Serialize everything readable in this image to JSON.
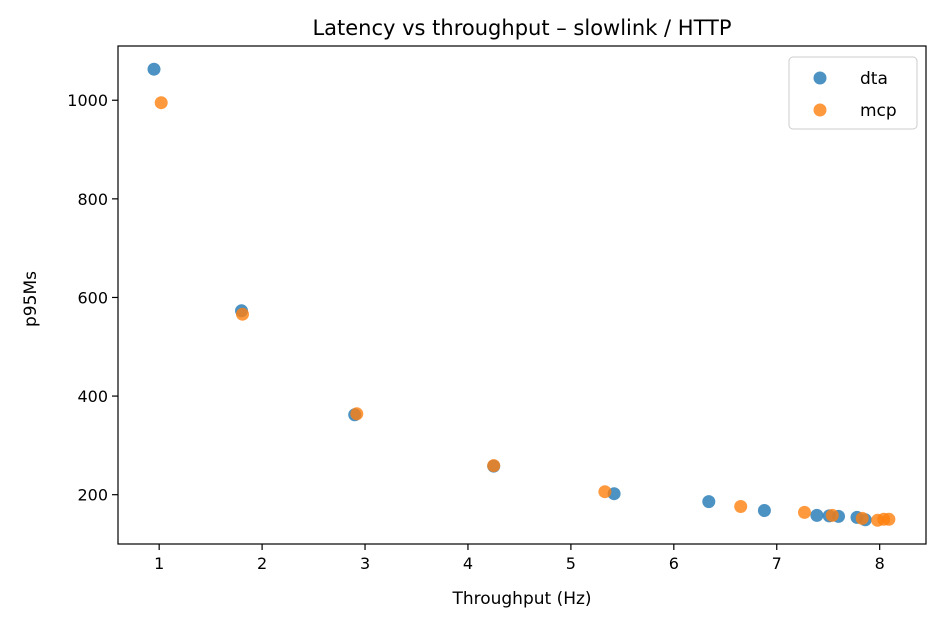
{
  "chart_data": {
    "type": "scatter",
    "title": "Latency vs throughput – slowlink / HTTP",
    "xlabel": "Throughput (Hz)",
    "ylabel": "p95Ms",
    "xlim": [
      0.6,
      8.45
    ],
    "ylim": [
      100,
      1110
    ],
    "xticks": [
      1,
      2,
      3,
      4,
      5,
      6,
      7,
      8
    ],
    "yticks": [
      200,
      400,
      600,
      800,
      1000
    ],
    "grid": false,
    "legend": "top-right",
    "series": [
      {
        "name": "dta",
        "color": "#1f77b4",
        "points": [
          [
            0.95,
            1063
          ],
          [
            1.8,
            573
          ],
          [
            2.9,
            362
          ],
          [
            4.25,
            258
          ],
          [
            5.42,
            202
          ],
          [
            6.34,
            186
          ],
          [
            6.88,
            168
          ],
          [
            7.39,
            158
          ],
          [
            7.51,
            157
          ],
          [
            7.6,
            156
          ],
          [
            7.78,
            154
          ],
          [
            7.86,
            149
          ]
        ]
      },
      {
        "name": "mcp",
        "color": "#ff7f0e",
        "points": [
          [
            1.02,
            995
          ],
          [
            1.81,
            566
          ],
          [
            2.92,
            364
          ],
          [
            4.25,
            259
          ],
          [
            5.33,
            206
          ],
          [
            6.65,
            176
          ],
          [
            7.27,
            164
          ],
          [
            7.54,
            158
          ],
          [
            7.83,
            152
          ],
          [
            7.98,
            148
          ],
          [
            8.04,
            150
          ],
          [
            8.09,
            150
          ]
        ]
      }
    ]
  }
}
